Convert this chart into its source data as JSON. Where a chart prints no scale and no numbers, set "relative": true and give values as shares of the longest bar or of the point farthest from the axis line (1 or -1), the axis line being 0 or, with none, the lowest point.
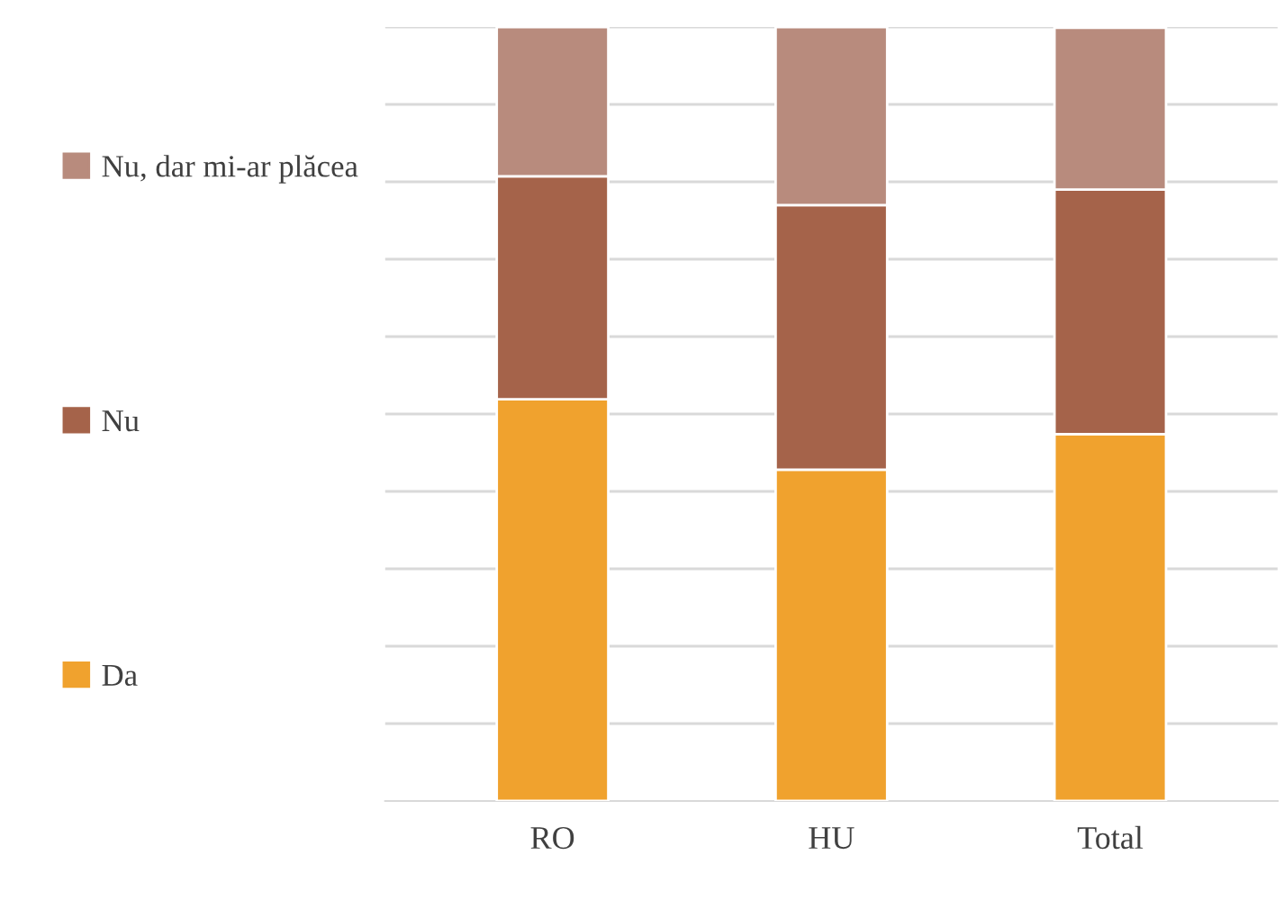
{
  "chart_data": {
    "type": "bar",
    "stacked": true,
    "relative": true,
    "categories": [
      "RO",
      "HU",
      "Total"
    ],
    "series": [
      {
        "name": "Da",
        "color": "#f0a22e",
        "values": [
          0.519,
          0.428,
          0.474
        ]
      },
      {
        "name": "Nu",
        "color": "#a5634a",
        "values": [
          0.288,
          0.342,
          0.316
        ]
      },
      {
        "name": "Nu, dar mi-ar plăcea",
        "color": "#b88b7d",
        "values": [
          0.193,
          0.23,
          0.209
        ]
      }
    ],
    "grid": "y",
    "legend": "left"
  }
}
